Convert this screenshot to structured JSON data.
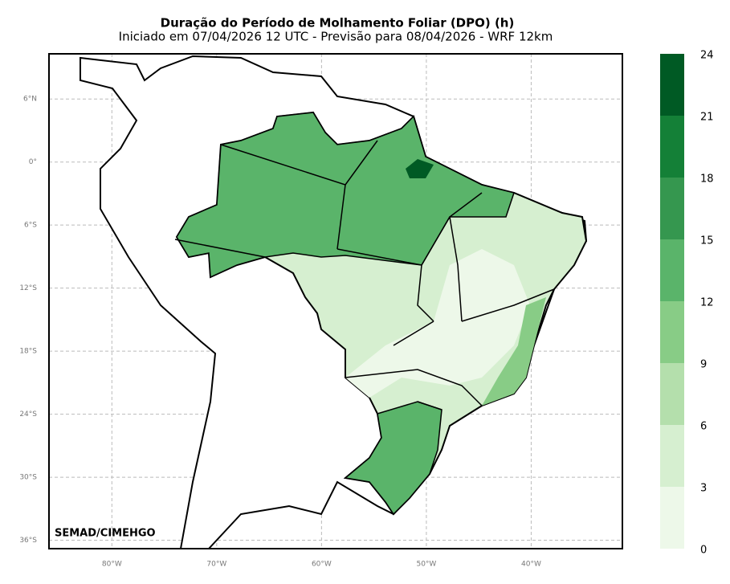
{
  "chart_data": {
    "type": "map",
    "title": "Duração do Período de Molhamento Foliar (DPO) (h)",
    "subtitle": "Iniciado em 07/04/2026 12 UTC - Previsão para 08/04/2026 - WRF 12km",
    "credit": "SEMAD/CIMEHGO",
    "xlim": [
      -86,
      -31.3
    ],
    "ylim": [
      -36.8,
      10.3
    ],
    "xticks": [
      {
        "value": -80,
        "label": "80°W"
      },
      {
        "value": -70,
        "label": "70°W"
      },
      {
        "value": -60,
        "label": "60°W"
      },
      {
        "value": -50,
        "label": "50°W"
      },
      {
        "value": -40,
        "label": "40°W"
      }
    ],
    "yticks": [
      {
        "value": 6,
        "label": "6°N"
      },
      {
        "value": 0,
        "label": "0°"
      },
      {
        "value": -6,
        "label": "6°S"
      },
      {
        "value": -12,
        "label": "12°S"
      },
      {
        "value": -18,
        "label": "18°S"
      },
      {
        "value": -24,
        "label": "24°S"
      },
      {
        "value": -30,
        "label": "30°S"
      },
      {
        "value": -36,
        "label": "36°S"
      }
    ],
    "grid": true,
    "colorbar_ticks": [
      0,
      3,
      6,
      9,
      12,
      15,
      18,
      21,
      24
    ],
    "colors": [
      "#edf8e9",
      "#d6efd0",
      "#b4dfac",
      "#88cc86",
      "#5ab46a",
      "#35974f",
      "#148037",
      "#005a24"
    ]
  }
}
